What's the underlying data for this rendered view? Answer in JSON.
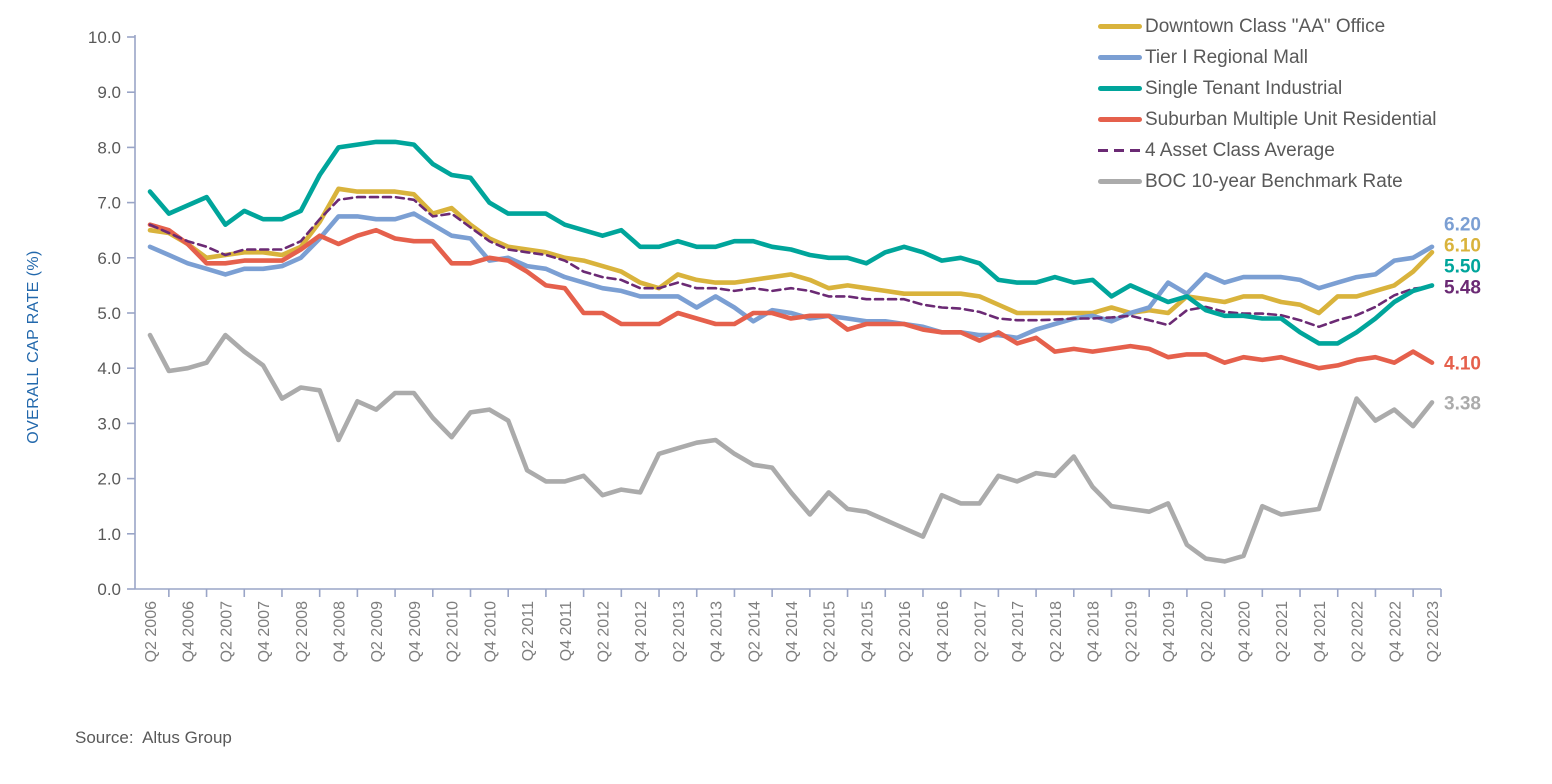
{
  "page": {
    "background": "#ffffff"
  },
  "chart_data": {
    "type": "line",
    "title": "",
    "ylabel": "OVERALL CAP RATE (%)",
    "xlabel": "",
    "ylim": [
      0,
      10
    ],
    "y_tick_labels": [
      "0.0",
      "1.0",
      "2.0",
      "3.0",
      "4.0",
      "5.0",
      "6.0",
      "7.0",
      "8.0",
      "9.0",
      "10.0"
    ],
    "x_tick_labels": [
      "Q2 2006",
      "Q4 2006",
      "Q2 2007",
      "Q4 2007",
      "Q2 2008",
      "Q4 2008",
      "Q2 2009",
      "Q4 2009",
      "Q2 2010",
      "Q4 2010",
      "Q2 2011",
      "Q4 2011",
      "Q2 2012",
      "Q4 2012",
      "Q2 2013",
      "Q4 2013",
      "Q2 2014",
      "Q4 2014",
      "Q2 2015",
      "Q4 2015",
      "Q2 2016",
      "Q4 2016",
      "Q2 2017",
      "Q4 2017",
      "Q2 2018",
      "Q4 2018",
      "Q2 2019",
      "Q4 2019",
      "Q2 2020",
      "Q4 2020",
      "Q2 2021",
      "Q4 2021",
      "Q2 2022",
      "Q4 2022",
      "Q2 2023"
    ],
    "x_frequency": "quarterly",
    "x_start": "Q2 2006",
    "x_end": "Q2 2023",
    "points_per_series": 69,
    "grid": false,
    "legend_position": "top-right",
    "style": {
      "axis_color": "#9AA5C7",
      "x_tick_label_color": "#7E7E7E",
      "y_tick_label_color": "#595959",
      "ylabel_color": "#2268AC",
      "legend_text_color": "#595959",
      "source_color": "#595959"
    },
    "series": [
      {
        "name": "Downtown Class \"AA\" Office",
        "color": "#D9B33C",
        "style": "solid",
        "end_label": "6.10",
        "values": [
          6.5,
          6.45,
          6.25,
          6.0,
          6.05,
          6.1,
          6.1,
          6.05,
          6.2,
          6.65,
          7.25,
          7.2,
          7.2,
          7.2,
          7.15,
          6.8,
          6.9,
          6.6,
          6.35,
          6.2,
          6.15,
          6.1,
          6.0,
          5.95,
          5.85,
          5.75,
          5.55,
          5.45,
          5.7,
          5.6,
          5.55,
          5.55,
          5.6,
          5.65,
          5.7,
          5.6,
          5.45,
          5.5,
          5.45,
          5.4,
          5.35,
          5.35,
          5.35,
          5.35,
          5.3,
          5.15,
          5.0,
          5.0,
          5.0,
          5.0,
          5.0,
          5.1,
          5.0,
          5.05,
          5.0,
          5.3,
          5.25,
          5.2,
          5.3,
          5.3,
          5.2,
          5.15,
          5.0,
          5.3,
          5.3,
          5.4,
          5.5,
          5.75,
          6.1
        ]
      },
      {
        "name": "Tier I Regional Mall",
        "color": "#7B9FD3",
        "style": "solid",
        "end_label": "6.20",
        "values": [
          6.2,
          6.05,
          5.9,
          5.8,
          5.7,
          5.8,
          5.8,
          5.85,
          6.0,
          6.35,
          6.75,
          6.75,
          6.7,
          6.7,
          6.8,
          6.6,
          6.4,
          6.35,
          5.95,
          6.0,
          5.85,
          5.8,
          5.65,
          5.55,
          5.45,
          5.4,
          5.3,
          5.3,
          5.3,
          5.1,
          5.3,
          5.1,
          4.85,
          5.05,
          5.0,
          4.9,
          4.95,
          4.9,
          4.85,
          4.85,
          4.8,
          4.75,
          4.65,
          4.65,
          4.6,
          4.6,
          4.55,
          4.7,
          4.8,
          4.9,
          4.95,
          4.85,
          5.0,
          5.1,
          5.55,
          5.35,
          5.7,
          5.55,
          5.65,
          5.65,
          5.65,
          5.6,
          5.45,
          5.55,
          5.65,
          5.7,
          5.95,
          6.0,
          6.2
        ]
      },
      {
        "name": "Single Tenant Industrial",
        "color": "#00A59B",
        "style": "solid",
        "end_label": "5.50",
        "values": [
          7.2,
          6.8,
          6.95,
          7.1,
          6.6,
          6.85,
          6.7,
          6.7,
          6.85,
          7.5,
          8.0,
          8.05,
          8.1,
          8.1,
          8.05,
          7.7,
          7.5,
          7.45,
          7.0,
          6.8,
          6.8,
          6.8,
          6.6,
          6.5,
          6.4,
          6.5,
          6.2,
          6.2,
          6.3,
          6.2,
          6.2,
          6.3,
          6.3,
          6.2,
          6.15,
          6.05,
          6.0,
          6.0,
          5.9,
          6.1,
          6.2,
          6.1,
          5.95,
          6.0,
          5.9,
          5.6,
          5.55,
          5.55,
          5.65,
          5.55,
          5.6,
          5.3,
          5.5,
          5.35,
          5.2,
          5.3,
          5.05,
          4.95,
          4.95,
          4.9,
          4.9,
          4.65,
          4.45,
          4.45,
          4.65,
          4.9,
          5.2,
          5.4,
          5.5
        ]
      },
      {
        "name": "Suburban Multiple Unit Residential",
        "color": "#E5604C",
        "style": "solid",
        "end_label": "4.10",
        "values": [
          6.6,
          6.5,
          6.25,
          5.9,
          5.9,
          5.95,
          5.95,
          5.95,
          6.15,
          6.4,
          6.25,
          6.4,
          6.5,
          6.35,
          6.3,
          6.3,
          5.9,
          5.9,
          6.0,
          5.95,
          5.75,
          5.5,
          5.45,
          5.0,
          5.0,
          4.8,
          4.8,
          4.8,
          5.0,
          4.9,
          4.8,
          4.8,
          5.0,
          5.0,
          4.9,
          4.95,
          4.95,
          4.7,
          4.8,
          4.8,
          4.8,
          4.7,
          4.65,
          4.65,
          4.5,
          4.65,
          4.45,
          4.55,
          4.3,
          4.35,
          4.3,
          4.35,
          4.4,
          4.35,
          4.2,
          4.25,
          4.25,
          4.1,
          4.2,
          4.15,
          4.2,
          4.1,
          4.0,
          4.05,
          4.15,
          4.2,
          4.1,
          4.3,
          4.1
        ]
      },
      {
        "name": "4 Asset Class Average",
        "color": "#6B2A74",
        "style": "dashed",
        "end_label": "5.48",
        "values": [
          6.6,
          6.45,
          6.3,
          6.2,
          6.05,
          6.15,
          6.15,
          6.15,
          6.3,
          6.7,
          7.05,
          7.1,
          7.1,
          7.1,
          7.05,
          6.75,
          6.8,
          6.55,
          6.3,
          6.15,
          6.1,
          6.05,
          5.95,
          5.75,
          5.65,
          5.6,
          5.45,
          5.45,
          5.55,
          5.45,
          5.45,
          5.4,
          5.45,
          5.4,
          5.45,
          5.4,
          5.3,
          5.3,
          5.25,
          5.25,
          5.25,
          5.15,
          5.1,
          5.08,
          5.02,
          4.9,
          4.87,
          4.87,
          4.88,
          4.9,
          4.9,
          4.92,
          4.95,
          4.87,
          4.78,
          5.05,
          5.11,
          5.02,
          4.99,
          4.99,
          4.96,
          4.87,
          4.75,
          4.87,
          4.96,
          5.11,
          5.32,
          5.44,
          5.48
        ]
      },
      {
        "name": "BOC 10-year Benchmark Rate",
        "color": "#ABABAB",
        "style": "solid",
        "end_label": "3.38",
        "values": [
          4.6,
          3.95,
          4.0,
          4.1,
          4.6,
          4.3,
          4.05,
          3.45,
          3.65,
          3.6,
          2.7,
          3.4,
          3.25,
          3.55,
          3.55,
          3.1,
          2.75,
          3.2,
          3.25,
          3.05,
          2.15,
          1.95,
          1.95,
          2.05,
          1.7,
          1.8,
          1.75,
          2.45,
          2.55,
          2.65,
          2.7,
          2.45,
          2.25,
          2.2,
          1.75,
          1.35,
          1.75,
          1.45,
          1.4,
          1.25,
          1.1,
          0.95,
          1.7,
          1.55,
          1.55,
          2.05,
          1.95,
          2.1,
          2.05,
          2.4,
          1.85,
          1.5,
          1.45,
          1.4,
          1.55,
          0.8,
          0.55,
          0.5,
          0.6,
          1.5,
          1.35,
          1.4,
          1.45,
          2.45,
          3.45,
          3.05,
          3.25,
          2.95,
          3.38
        ]
      }
    ],
    "source_label": "Source:  Altus Group"
  }
}
